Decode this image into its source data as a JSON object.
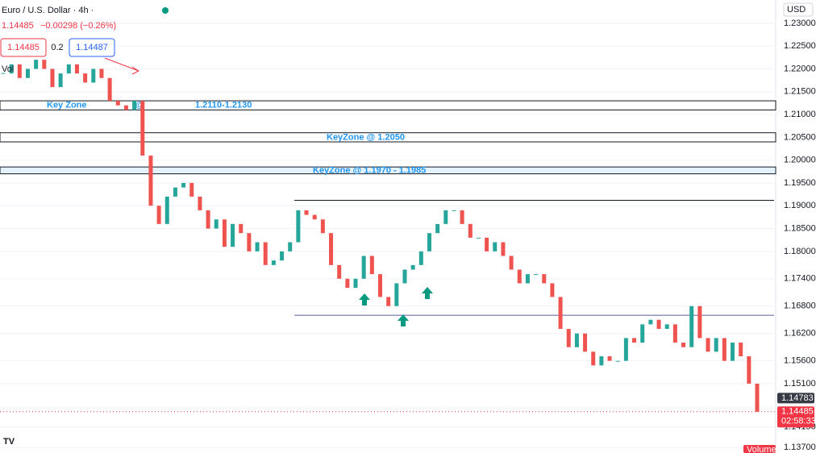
{
  "header": {
    "title": "Euro / U.S. Dollar · 4h ·",
    "price": "1.14485",
    "change": "−0.00298 (−0.26%)",
    "sell": "1.14485",
    "spread": "0.2",
    "buy": "1.14487",
    "volume_label": "Vol",
    "currency": "USD"
  },
  "chart_data": {
    "type": "candlestick",
    "values": [
      1.219,
      1.221,
      1.218,
      1.22,
      1.222,
      1.22,
      1.216,
      1.219,
      1.221,
      1.219,
      1.217,
      1.22,
      1.218,
      1.213,
      1.212,
      1.211,
      1.213,
      1.201,
      1.19,
      1.186,
      1.192,
      1.194,
      1.195,
      1.192,
      1.189,
      1.185,
      1.187,
      1.181,
      1.186,
      1.184,
      1.18,
      1.182,
      1.177,
      1.178,
      1.18,
      1.182,
      1.189,
      1.188,
      1.187,
      1.184,
      1.177,
      1.174,
      1.172,
      1.174,
      1.179,
      1.175,
      1.17,
      1.168,
      1.173,
      1.176,
      1.177,
      1.18,
      1.184,
      1.186,
      1.189,
      1.189,
      1.186,
      1.183,
      1.183,
      1.18,
      1.182,
      1.179,
      1.176,
      1.173,
      1.175,
      1.175,
      1.173,
      1.17,
      1.163,
      1.159,
      1.162,
      1.158,
      1.155,
      1.157,
      1.156,
      1.156,
      1.161,
      1.16,
      1.164,
      1.165,
      1.163,
      1.164,
      1.16,
      1.159,
      1.168,
      1.161,
      1.158,
      1.161,
      1.156,
      1.16,
      1.157,
      1.151,
      1.14485
    ],
    "up_color": "#26a69a",
    "down_color": "#ef5350",
    "ylim": [
      1.1358,
      1.2351
    ],
    "yticks": [
      {
        "value": 1.23,
        "label": "1.23000"
      },
      {
        "value": 1.225,
        "label": "1.22500"
      },
      {
        "value": 1.22,
        "label": "1.22000"
      },
      {
        "value": 1.215,
        "label": "1.21500"
      },
      {
        "value": 1.21,
        "label": "1.21000"
      },
      {
        "value": 1.205,
        "label": "1.20500"
      },
      {
        "value": 1.2,
        "label": "1.20000"
      },
      {
        "value": 1.195,
        "label": "1.19500"
      },
      {
        "value": 1.19,
        "label": "1.19000"
      },
      {
        "value": 1.185,
        "label": "1.18500"
      },
      {
        "value": 1.18,
        "label": "1.18000"
      },
      {
        "value": 1.174,
        "label": "1.17400"
      },
      {
        "value": 1.168,
        "label": "1.16800"
      },
      {
        "value": 1.162,
        "label": "1.16200"
      },
      {
        "value": 1.156,
        "label": "1.15600"
      },
      {
        "value": 1.151,
        "label": "1.15100"
      },
      {
        "value": 1.1415,
        "label": "1.14150"
      },
      {
        "value": 1.137,
        "label": "1.13700"
      }
    ],
    "grid": true,
    "zones": [
      {
        "low": 1.211,
        "high": 1.213,
        "labels": [
          "Key Zone",
          "@",
          "1.2110-1.2130"
        ]
      },
      {
        "low": 1.204,
        "high": 1.206,
        "labels": [
          "KeyZone @ 1.2050"
        ]
      },
      {
        "low": 1.197,
        "high": 1.1985,
        "labels": [
          "KeyZone @ 1.1970 - 1.1985"
        ]
      }
    ],
    "levels": [
      1.1912,
      1.166
    ],
    "price_labels": [
      1.14783,
      1.14485
    ],
    "countdown": "02:58:33",
    "volume_title": "Volume"
  }
}
